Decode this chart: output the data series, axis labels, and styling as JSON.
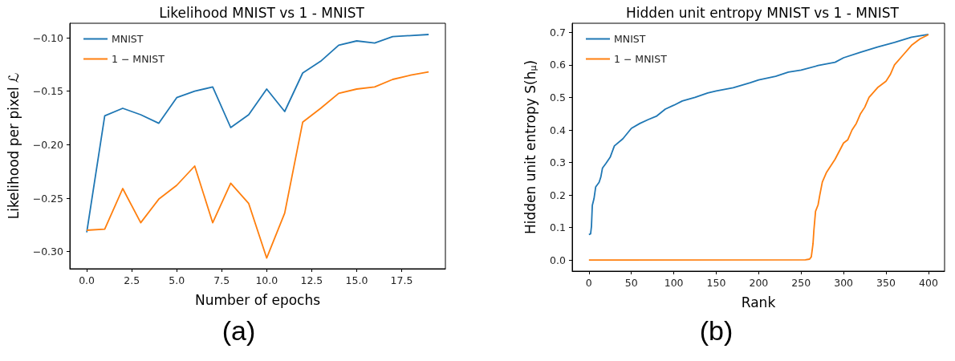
{
  "chart_data": [
    {
      "type": "line",
      "title": "Likelihood MNIST vs 1 - MNIST",
      "xlabel": "Number of epochs",
      "ylabel": "Likelihood per pixel ℒ",
      "annotations": [
        "(a)"
      ],
      "legend": "top left",
      "grid": false,
      "marker": "none",
      "line_style": "solid",
      "x": [
        0,
        1,
        2,
        3,
        4,
        5,
        6,
        7,
        8,
        9,
        10,
        11,
        12,
        13,
        14,
        15,
        16,
        17,
        18,
        19
      ],
      "xlim": [
        -0.94,
        19.93
      ],
      "ylim": [
        -0.316,
        -0.0865
      ],
      "xticks": [
        {
          "value": 0,
          "label": "0.0"
        },
        {
          "value": 2.5,
          "label": "2.5"
        },
        {
          "value": 5,
          "label": "5.0"
        },
        {
          "value": 7.5,
          "label": "7.5"
        },
        {
          "value": 10,
          "label": "10.0"
        },
        {
          "value": 12.5,
          "label": "12.5"
        },
        {
          "value": 15,
          "label": "15.0"
        },
        {
          "value": 17.5,
          "label": "17.5"
        }
      ],
      "yticks": [
        {
          "value": -0.3,
          "label": "−0.30"
        },
        {
          "value": -0.25,
          "label": "−0.25"
        },
        {
          "value": -0.2,
          "label": "−0.20"
        },
        {
          "value": -0.15,
          "label": "−0.15"
        },
        {
          "value": -0.1,
          "label": "−0.10"
        }
      ],
      "series": [
        {
          "name": "MNIST",
          "color": "#1f77b4",
          "values": [
            -0.282,
            -0.173,
            -0.166,
            -0.172,
            -0.18,
            -0.156,
            -0.15,
            -0.146,
            -0.184,
            -0.172,
            -0.148,
            -0.169,
            -0.133,
            -0.122,
            -0.107,
            -0.103,
            -0.105,
            -0.099,
            -0.098,
            -0.097
          ]
        },
        {
          "name": "1 − MNIST",
          "color": "#ff7f0e",
          "values": [
            -0.28,
            -0.279,
            -0.241,
            -0.273,
            -0.251,
            -0.238,
            -0.22,
            -0.273,
            -0.236,
            -0.255,
            -0.306,
            -0.264,
            -0.179,
            -0.166,
            -0.152,
            -0.148,
            -0.146,
            -0.139,
            -0.135,
            -0.132
          ]
        }
      ]
    },
    {
      "type": "line",
      "title": "Hidden unit entropy MNIST vs 1 - MNIST",
      "xlabel": "Rank",
      "ylabel": "Hidden unit entropy S(h$_{μ}$)",
      "annotations": [
        "(b)"
      ],
      "legend": "top left",
      "grid": false,
      "marker": "none",
      "line_style": "solid",
      "xlim": [
        -19.7,
        419
      ],
      "ylim": [
        -0.034,
        0.728
      ],
      "xticks": [
        0,
        50,
        100,
        150,
        200,
        250,
        300,
        350,
        400
      ],
      "yticks": [
        {
          "value": 0,
          "label": "0.0"
        },
        {
          "value": 0.1,
          "label": "0.1"
        },
        {
          "value": 0.2,
          "label": "0.2"
        },
        {
          "value": 0.3,
          "label": "0.3"
        },
        {
          "value": 0.4,
          "label": "0.4"
        },
        {
          "value": 0.5,
          "label": "0.5"
        },
        {
          "value": 0.6,
          "label": "0.6"
        },
        {
          "value": 0.7,
          "label": "0.7"
        }
      ],
      "series": [
        {
          "name": "MNIST",
          "color": "#1f77b4",
          "x": [
            0,
            2,
            3,
            4,
            6,
            8,
            12,
            14,
            16,
            20,
            25,
            30,
            40,
            50,
            60,
            70,
            80,
            90,
            100,
            110,
            125,
            140,
            150,
            170,
            190,
            200,
            220,
            235,
            250,
            270,
            290,
            300,
            320,
            340,
            360,
            380,
            400
          ],
          "values": [
            0.078,
            0.081,
            0.104,
            0.168,
            0.189,
            0.225,
            0.239,
            0.255,
            0.283,
            0.297,
            0.316,
            0.351,
            0.373,
            0.405,
            0.42,
            0.432,
            0.443,
            0.464,
            0.476,
            0.489,
            0.5,
            0.514,
            0.52,
            0.53,
            0.545,
            0.554,
            0.565,
            0.578,
            0.584,
            0.598,
            0.608,
            0.622,
            0.639,
            0.655,
            0.669,
            0.685,
            0.694
          ]
        },
        {
          "name": "1 − MNIST",
          "color": "#ff7f0e",
          "x": [
            0,
            255,
            260,
            262,
            264,
            265,
            267,
            270,
            272,
            275,
            280,
            290,
            300,
            305,
            310,
            315,
            320,
            325,
            330,
            340,
            350,
            355,
            360,
            370,
            380,
            390,
            400
          ],
          "values": [
            0,
            0.001,
            0.003,
            0.01,
            0.05,
            0.09,
            0.15,
            0.17,
            0.2,
            0.24,
            0.27,
            0.31,
            0.36,
            0.37,
            0.4,
            0.42,
            0.45,
            0.47,
            0.5,
            0.53,
            0.55,
            0.57,
            0.6,
            0.63,
            0.66,
            0.68,
            0.693
          ]
        }
      ]
    }
  ]
}
